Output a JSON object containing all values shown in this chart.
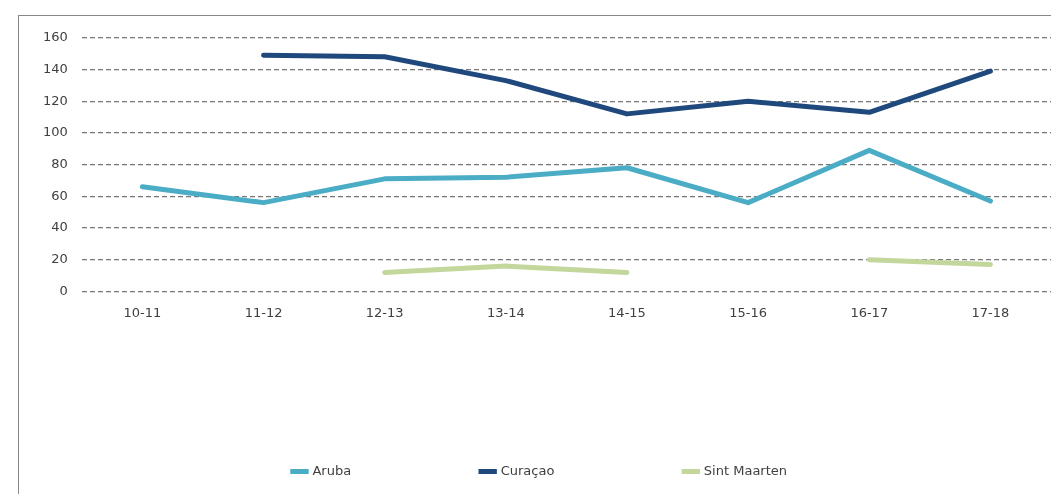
{
  "chart_data": {
    "type": "line",
    "categories": [
      "10-11",
      "11-12",
      "12-13",
      "13-14",
      "14-15",
      "15-16",
      "16-17",
      "17-18"
    ],
    "series": [
      {
        "name": "Aruba",
        "color": "#4bacc6",
        "values": [
          66,
          56,
          71,
          72,
          78,
          56,
          89,
          57
        ]
      },
      {
        "name": "Curaçao",
        "color": "#1f497d",
        "values": [
          null,
          149,
          148,
          133,
          112,
          120,
          113,
          139
        ]
      },
      {
        "name": "Sint Maarten",
        "color": "#c3d69b",
        "values": [
          null,
          null,
          12,
          16,
          12,
          null,
          20,
          17
        ]
      }
    ],
    "ylim": [
      0,
      160
    ],
    "yticks": [
      0,
      20,
      40,
      60,
      80,
      100,
      120,
      140,
      160
    ],
    "grid": "y",
    "legend": "bottom",
    "marker": "none",
    "line_style": "solid"
  }
}
